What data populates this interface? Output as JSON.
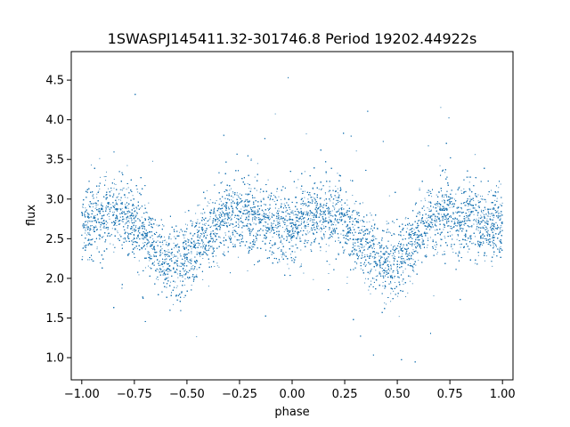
{
  "chart_data": {
    "type": "scatter",
    "title": "1SWASPJ145411.32-301746.8 Period 19202.44922s",
    "xlabel": "phase",
    "ylabel": "flux",
    "xlim": [
      -1.05,
      1.05
    ],
    "ylim": [
      0.72,
      4.86
    ],
    "x_ticks": [
      -1.0,
      -0.75,
      -0.5,
      -0.25,
      0.0,
      0.25,
      0.5,
      0.75,
      1.0
    ],
    "x_tick_labels": [
      "−1.00",
      "−0.75",
      "−0.50",
      "−0.25",
      "0.00",
      "0.25",
      "0.50",
      "0.75",
      "1.00"
    ],
    "y_ticks": [
      1.0,
      1.5,
      2.0,
      2.5,
      3.0,
      3.5,
      4.0,
      4.5
    ],
    "y_tick_labels": [
      "1.0",
      "1.5",
      "2.0",
      "2.5",
      "3.0",
      "3.5",
      "4.0",
      "4.5"
    ],
    "grid": false,
    "marker_color": "#1f77b4",
    "series": [
      {
        "model": {
          "baseline": 2.95,
          "primary_min": 2.2,
          "primary_phase": 0.45,
          "secondary_min": 2.65,
          "secondary_phase": -0.05,
          "scatter_sigma": 0.22,
          "x_range": [
            -1.0,
            1.0
          ],
          "n_points": 22000
        }
      }
    ]
  }
}
